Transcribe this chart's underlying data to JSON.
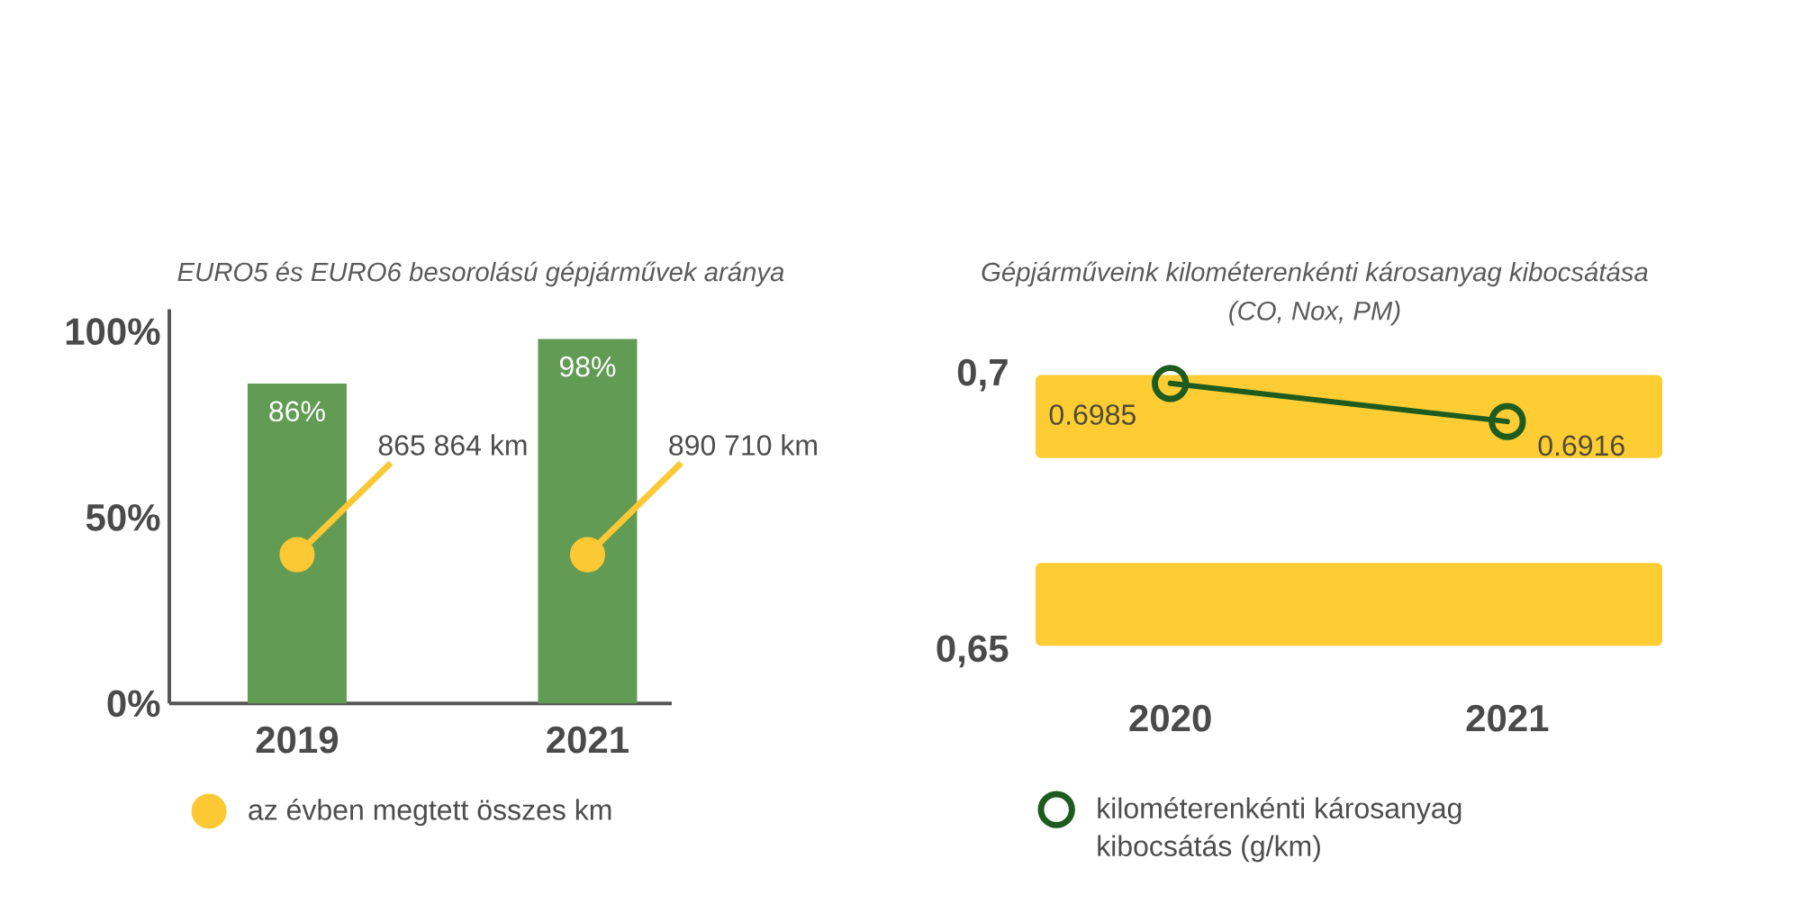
{
  "chart_data": [
    {
      "type": "bar",
      "title": "EURO5 és EURO6 besorolású gépjárművek aránya",
      "categories": [
        "2019",
        "2021"
      ],
      "series": [
        {
          "type": "bar",
          "color": "#629b53",
          "values": [
            86,
            98
          ],
          "value_labels": [
            "86%",
            "98%"
          ]
        },
        {
          "type": "scatter",
          "name": "az évben megtett összes km",
          "color": "#fcc934",
          "values": [
            40,
            40
          ]
        }
      ],
      "annotations": [
        {
          "text": "865 864 km",
          "x": "2019",
          "y": 40
        },
        {
          "text": "890 710 km",
          "x": "2021",
          "y": 40
        }
      ],
      "ylim": [
        0,
        106
      ],
      "yticks": [
        {
          "value": 0,
          "label": "0%"
        },
        {
          "value": 50,
          "label": "50%"
        },
        {
          "value": 100,
          "label": "100%"
        }
      ],
      "legend": "bottom",
      "marker": "circle"
    },
    {
      "type": "line",
      "title": "Gépjárműveink kilométerenkénti károsanyag kibocsátása",
      "subtitle": "(CO, Nox, PM)",
      "categories": [
        "2020",
        "2021"
      ],
      "series": [
        {
          "name": "kilométerenkénti károsanyag kibocsátás (g/km)",
          "color": "#1e5b1e",
          "values": [
            0.6985,
            0.6916
          ]
        }
      ],
      "ylim": [
        0.65,
        0.7
      ],
      "yticks": [
        {
          "value": 0.7,
          "label": "0,7"
        },
        {
          "value": 0.65,
          "label": "0,65"
        }
      ],
      "bands": [
        {
          "axis": "y",
          "from": 0.685,
          "to": 0.7,
          "color": "#fecd33"
        },
        {
          "axis": "y",
          "from": 0.651,
          "to": 0.666,
          "color": "#fecd33"
        }
      ],
      "data_labels": true,
      "legend": "bottom",
      "marker": "circle",
      "line_style": "solid"
    }
  ]
}
